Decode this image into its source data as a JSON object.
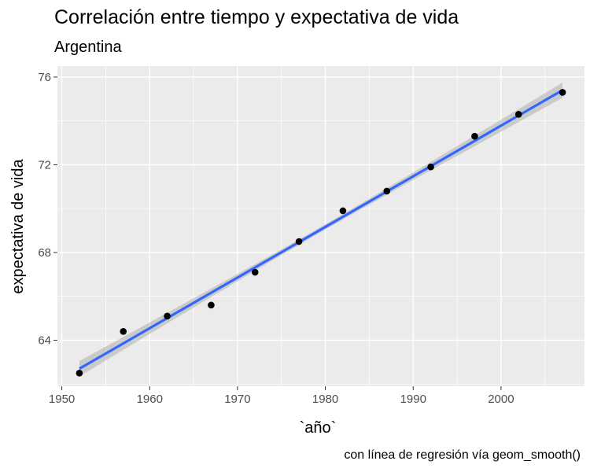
{
  "chart_data": {
    "type": "scatter",
    "title": "Correlación entre tiempo y expectativa de vida",
    "subtitle": "Argentina",
    "xlabel": "`año`",
    "ylabel": "expectativa de vida",
    "caption": "con línea de regresión vía geom_smooth()",
    "xlim": [
      1949.5,
      2009.5
    ],
    "ylim": [
      61.9,
      76.5
    ],
    "x_ticks": [
      1950,
      1960,
      1970,
      1980,
      1990,
      2000
    ],
    "y_ticks": [
      64,
      68,
      72,
      76
    ],
    "grid": true,
    "points": [
      {
        "x": 1952,
        "y": 62.5
      },
      {
        "x": 1957,
        "y": 64.4
      },
      {
        "x": 1962,
        "y": 65.1
      },
      {
        "x": 1967,
        "y": 65.6
      },
      {
        "x": 1972,
        "y": 67.1
      },
      {
        "x": 1977,
        "y": 68.5
      },
      {
        "x": 1982,
        "y": 69.9
      },
      {
        "x": 1987,
        "y": 70.8
      },
      {
        "x": 1992,
        "y": 71.9
      },
      {
        "x": 1997,
        "y": 73.3
      },
      {
        "x": 2002,
        "y": 74.3
      },
      {
        "x": 2007,
        "y": 75.3
      }
    ],
    "regression": {
      "x": [
        1952,
        2007
      ],
      "y": [
        62.7,
        75.4
      ],
      "ci_half_width_ends": 0.35,
      "ci_half_width_mid": 0.12
    },
    "colors": {
      "panel": "#ebebeb",
      "grid": "#ffffff",
      "point": "#000000",
      "line": "#3366ff",
      "ribbon": "#999999"
    }
  }
}
